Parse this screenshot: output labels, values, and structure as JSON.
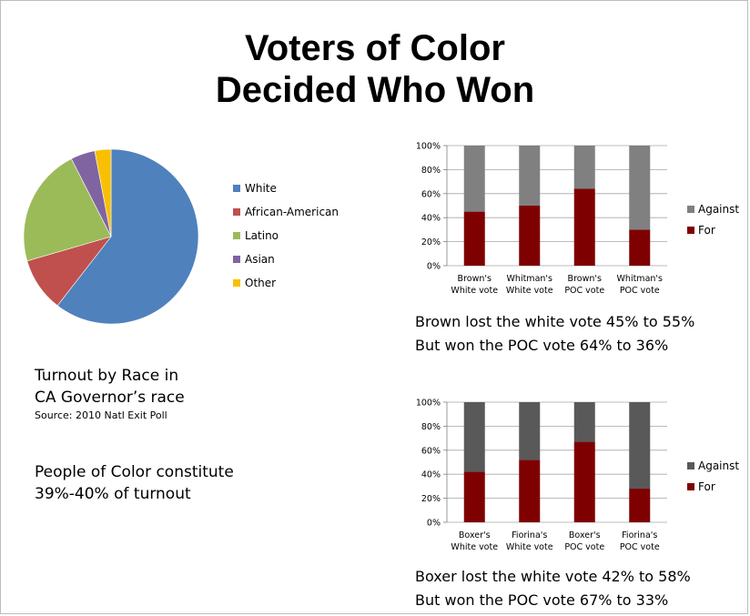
{
  "title": {
    "line1": "Voters of Color",
    "line2": "Decided Who Won"
  },
  "turnout": {
    "caption_line1": "Turnout by Race in",
    "caption_line2": "CA Governor’s race",
    "source": "Source:  2010 Natl Exit Poll",
    "note_line1": "People of Color constitute",
    "note_line2": "39%-40% of turnout"
  },
  "statements": {
    "brown_line1": "Brown lost the white vote 45% to 55%",
    "brown_line2": "But won the POC vote 64% to 36%",
    "boxer_line1": "Boxer lost the white vote 42% to 58%",
    "boxer_line2": "But won the POC vote 67% to 33%"
  },
  "chart_data": [
    {
      "type": "pie",
      "labels": [
        "White",
        "African-American",
        "Latino",
        "Asian",
        "Other"
      ],
      "values": [
        60.5,
        10,
        22,
        4.5,
        3
      ],
      "colors": [
        "#4f81bd",
        "#c0504d",
        "#9bbb59",
        "#8064a2",
        "#f8c000"
      ],
      "legend": "right"
    },
    {
      "type": "bar",
      "stacked": true,
      "categories": [
        [
          "Brown's",
          "White vote"
        ],
        [
          "Whitman's",
          "White vote"
        ],
        [
          "Brown's",
          "POC vote"
        ],
        [
          "Whitman's",
          "POC vote"
        ]
      ],
      "series": [
        {
          "name": "For",
          "values": [
            45,
            50,
            64,
            30
          ],
          "color": "#7f0000"
        },
        {
          "name": "Against",
          "values": [
            55,
            50,
            36,
            70
          ],
          "color": "#808080"
        }
      ],
      "yticks": [
        "0%",
        "20%",
        "40%",
        "60%",
        "80%",
        "100%"
      ],
      "ylim": [
        0,
        100
      ],
      "legend": "right"
    },
    {
      "type": "bar",
      "stacked": true,
      "categories": [
        [
          "Boxer's",
          "White vote"
        ],
        [
          "Fiorina's",
          "White vote"
        ],
        [
          "Boxer's",
          "POC vote"
        ],
        [
          "Fiorina's",
          "POC vote"
        ]
      ],
      "series": [
        {
          "name": "For",
          "values": [
            42,
            52,
            67,
            28
          ],
          "color": "#7f0000"
        },
        {
          "name": "Against",
          "values": [
            58,
            48,
            33,
            72
          ],
          "color": "#595959"
        }
      ],
      "yticks": [
        "0%",
        "20%",
        "40%",
        "60%",
        "80%",
        "100%"
      ],
      "ylim": [
        0,
        100
      ],
      "legend": "right"
    }
  ]
}
